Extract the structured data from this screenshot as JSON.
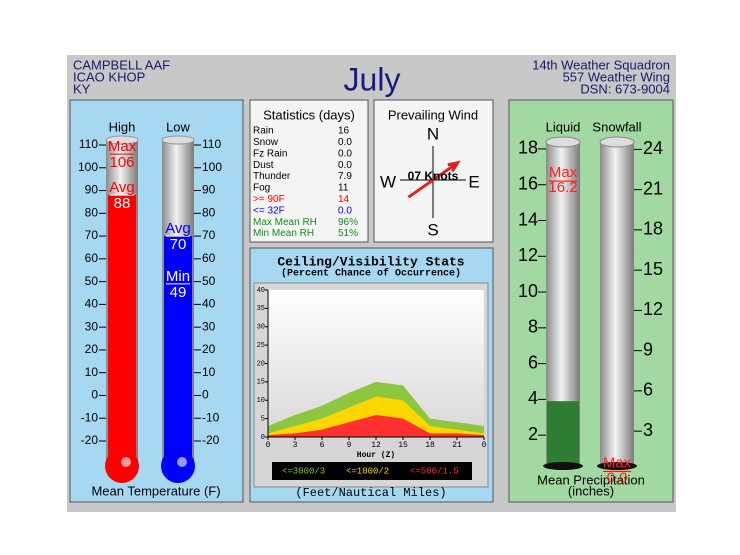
{
  "header": {
    "location": [
      "CAMPBELL AAF",
      "ICAO KHOP",
      "KY"
    ],
    "month": "July",
    "unit": [
      "14th Weather Squadron",
      "557 Weather Wing",
      "DSN: 673-9004"
    ]
  },
  "statistics": {
    "title": "Statistics (days)",
    "rows": [
      {
        "label": "Rain",
        "value": "16",
        "color": "#000000"
      },
      {
        "label": "Snow",
        "value": "0.0",
        "color": "#000000"
      },
      {
        "label": "Fz Rain",
        "value": "0.0",
        "color": "#000000"
      },
      {
        "label": "Dust",
        "value": "0.0",
        "color": "#000000"
      },
      {
        "label": "Thunder",
        "value": "7.9",
        "color": "#000000"
      },
      {
        "label": "Fog",
        "value": "11",
        "color": "#000000"
      },
      {
        "label": ">= 90F",
        "value": "14",
        "color": "#ff0000"
      },
      {
        "label": "<= 32F",
        "value": "0.0",
        "color": "#0000ff"
      },
      {
        "label": "Max Mean RH",
        "value": "96%",
        "color": "#1a8a1a"
      },
      {
        "label": "Min Mean RH",
        "value": "51%",
        "color": "#1a8a1a"
      }
    ]
  },
  "wind": {
    "title": "Prevailing Wind",
    "north": "N",
    "east": "E",
    "south": "S",
    "west": "W",
    "direction": 55,
    "speed_label": "07 Knots",
    "color": "#e02020"
  },
  "chart_data": [
    {
      "type": "thermometer",
      "title": "Mean Temperature (F)",
      "ylim": [
        -20,
        110
      ],
      "yticks": [
        -20,
        -10,
        0,
        10,
        20,
        30,
        40,
        50,
        60,
        70,
        80,
        90,
        100,
        110
      ],
      "series": [
        {
          "name": "High",
          "color": "#ff0000",
          "value": 88,
          "value_name": "Avg",
          "extreme": 106,
          "extreme_name": "Max"
        },
        {
          "name": "Low",
          "color": "#0000ff",
          "value": 70,
          "value_name": "Avg",
          "extreme": 49,
          "extreme_name": "Min"
        }
      ]
    },
    {
      "type": "area",
      "title": "Ceiling/Visibility Stats",
      "subtitle": "(Percent Chance of Occurrence)",
      "xlabel": "Hour (Z)",
      "note": "(Feet/Nautical Miles)",
      "x": [
        0,
        3,
        6,
        9,
        12,
        15,
        18,
        21,
        24
      ],
      "xlim": [
        0,
        24
      ],
      "xticks": [
        0,
        3,
        6,
        9,
        12,
        15,
        18,
        21,
        {
          "value": 24,
          "label": "0"
        }
      ],
      "ylim": [
        0,
        40
      ],
      "yticks": [
        0,
        5,
        10,
        15,
        20,
        25,
        30,
        35,
        40
      ],
      "series": [
        {
          "name": "<=3000/3",
          "color": "#8dc63f",
          "values": [
            3,
            6,
            8.5,
            12,
            15,
            14,
            5,
            4,
            3
          ]
        },
        {
          "name": "<=1000/2",
          "color": "#ffd700",
          "values": [
            1,
            3,
            5,
            8,
            11,
            10,
            3,
            2,
            1
          ]
        },
        {
          "name": "<=500/1.5",
          "color": "#ff3030",
          "values": [
            0.5,
            1,
            2,
            4,
            6,
            5,
            1,
            1,
            0.5
          ]
        }
      ]
    },
    {
      "type": "gauge",
      "title": "Mean Precipitation",
      "subtitle": "(inches)",
      "series": [
        {
          "name": "Liquid",
          "color": "#2e7d32",
          "value": 3.9,
          "extreme": 16.2,
          "extreme_name": "Max",
          "ylim": [
            0.5,
            18.5
          ],
          "yticks": [
            2,
            4,
            6,
            8,
            10,
            12,
            14,
            16,
            18
          ],
          "axis_side": "left"
        },
        {
          "name": "Snowfall",
          "color": "#2e7d32",
          "value": 0,
          "extreme": 0,
          "extreme_label": "0.0",
          "extreme_name": "Max",
          "ylim": [
            0.7,
            24.7
          ],
          "yticks": [
            3,
            6,
            9,
            12,
            15,
            18,
            21,
            24
          ],
          "axis_side": "right"
        }
      ]
    }
  ]
}
